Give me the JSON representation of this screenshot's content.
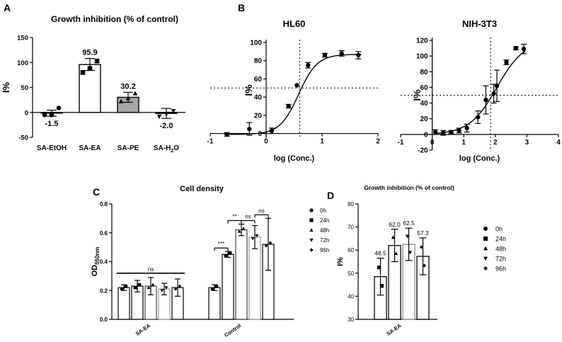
{
  "chart_data": [
    {
      "panel": "A",
      "type": "bar",
      "title": "Growth inhibition (% of control)",
      "ylabel": "I%",
      "xlabel": "",
      "ylim": [
        -50,
        150
      ],
      "yticks": [
        -50,
        0,
        50,
        100,
        150
      ],
      "categories": [
        "SA-EtOH",
        "SA-EA",
        "SA-PE",
        "SA-H2O"
      ],
      "category_labels": [
        {
          "main": "SA-EtOH",
          "sub": "",
          "tail": ""
        },
        {
          "main": "SA-EA",
          "sub": "",
          "tail": ""
        },
        {
          "main": "SA-PE",
          "sub": "",
          "tail": ""
        },
        {
          "main": "SA-H",
          "sub": "2",
          "tail": "O"
        }
      ],
      "values": [
        -1.5,
        95.9,
        30.2,
        -2.0
      ],
      "value_labels": [
        "-1.5",
        "95.9",
        "30.2",
        "-2.0"
      ],
      "errors": [
        6,
        12,
        10,
        10
      ],
      "bar_colors": [
        "#ffffff",
        "#ffffff",
        "#a6a6a6",
        "#ffffff"
      ],
      "replicates": [
        {
          "marker": "circle",
          "values": [
            -5,
            -5,
            9
          ]
        },
        {
          "marker": "square",
          "values": [
            80,
            88,
            103
          ]
        },
        {
          "marker": "triangle",
          "values": [
            22,
            28,
            38
          ]
        },
        {
          "marker": "triangle-down",
          "values": [
            -8,
            -3,
            3
          ]
        }
      ]
    },
    {
      "panel": "B",
      "type": "scatter",
      "title": "HL60",
      "xlabel": "log (Conc.)",
      "ylabel": "I%",
      "xlim": [
        -1,
        2
      ],
      "ylim": [
        -5,
        100
      ],
      "xticks": [
        -1,
        0,
        1,
        2
      ],
      "yticks": [
        0,
        20,
        40,
        60,
        80,
        100
      ],
      "fit": {
        "bottom": -1,
        "top": 87,
        "logIC50": 0.58,
        "hill": 2.6
      },
      "x": [
        -0.7,
        -0.3,
        0.1,
        0.4,
        0.55,
        0.75,
        1.05,
        1.35,
        1.65
      ],
      "y": [
        -1,
        5,
        3,
        30,
        53,
        75,
        86,
        88,
        86
      ],
      "err": [
        2,
        7,
        3,
        2,
        0,
        3,
        2,
        3,
        4
      ],
      "reference_lines": {
        "x": 0.6,
        "y": 50
      }
    },
    {
      "panel": "B",
      "type": "scatter",
      "title": "NIH-3T3",
      "xlabel": "log (Conc.)",
      "ylabel": "I%",
      "xlim": [
        -1,
        4
      ],
      "ylim": [
        -20,
        120
      ],
      "xticks": [
        -1,
        0,
        1,
        2,
        3,
        4
      ],
      "yticks": [
        -20,
        0,
        20,
        40,
        60,
        80,
        100,
        120
      ],
      "fit": {
        "bottom": 0,
        "top": 120,
        "logIC50": 2.05,
        "hill": 1.0
      },
      "x": [
        0.1,
        0.35,
        0.6,
        0.85,
        1.1,
        1.45,
        1.7,
        1.95,
        2.05,
        2.35,
        2.65,
        2.9
      ],
      "y": [
        3,
        2,
        3,
        5,
        8,
        22,
        44,
        52,
        62,
        92,
        110,
        109
      ],
      "err": [
        3,
        3,
        2,
        3,
        5,
        8,
        18,
        12,
        20,
        3,
        2,
        6
      ],
      "reference_lines": {
        "x": 1.85,
        "y": 50
      }
    },
    {
      "panel": "C",
      "type": "bar",
      "title": "Cell density",
      "ylabel": "OD",
      "ylabel_sub": "550nm",
      "ylim": [
        0.0,
        0.8
      ],
      "yticks": [
        0.0,
        0.2,
        0.4,
        0.6,
        0.8
      ],
      "ytick_labels": [
        "0.0",
        "0.2",
        "0.4",
        "0.6",
        "0.8"
      ],
      "categories": [
        "SA-EA",
        "Control"
      ],
      "legend": [
        "0h",
        "24h",
        "48h",
        "72h",
        "96h"
      ],
      "legend_markers": [
        "circle",
        "square",
        "triangle",
        "triangle-down",
        "diamond"
      ],
      "series": [
        {
          "name": "0h",
          "values": [
            0.22,
            0.22
          ],
          "errors": [
            0.02,
            0.02
          ]
        },
        {
          "name": "24h",
          "values": [
            0.23,
            0.45
          ],
          "errors": [
            0.04,
            0.02
          ]
        },
        {
          "name": "48h",
          "values": [
            0.23,
            0.62
          ],
          "errors": [
            0.06,
            0.04
          ]
        },
        {
          "name": "72h",
          "values": [
            0.21,
            0.57
          ],
          "errors": [
            0.04,
            0.08
          ]
        },
        {
          "name": "96h",
          "values": [
            0.22,
            0.52
          ],
          "errors": [
            0.06,
            0.18
          ]
        }
      ],
      "significance": [
        {
          "group": "SA-EA",
          "from": 0,
          "to": 4,
          "label": "ns"
        },
        {
          "group": "Control",
          "from": 0,
          "to": 1,
          "label": "***"
        },
        {
          "group": "Control",
          "from": 1,
          "to": 2,
          "label": "**"
        },
        {
          "group": "Control",
          "from": 2,
          "to": 3,
          "label": "ns"
        },
        {
          "group": "Control",
          "from": 3,
          "to": 4,
          "label": "ns"
        }
      ]
    },
    {
      "panel": "D",
      "type": "bar",
      "title": "Growth inhibition (% of control)",
      "ylabel": "I%",
      "ylim": [
        30,
        80
      ],
      "yticks": [
        30,
        40,
        50,
        60,
        70,
        80
      ],
      "categories": [
        "SA-EA"
      ],
      "legend": [
        "0h",
        "24h",
        "48h",
        "72h",
        "96h"
      ],
      "legend_markers": [
        "circle",
        "square",
        "triangle",
        "triangle-down",
        "diamond"
      ],
      "series": [
        {
          "name": "24h",
          "value": 48.5,
          "label": "48.5",
          "error": 8
        },
        {
          "name": "48h",
          "value": 62.0,
          "label": "62.0",
          "error": 7
        },
        {
          "name": "72h",
          "value": 62.5,
          "label": "62.5",
          "error": 7
        },
        {
          "name": "96h",
          "value": 57.3,
          "label": "57.3",
          "error": 8
        }
      ]
    }
  ],
  "panel_letters": [
    "A",
    "B",
    "C",
    "D"
  ]
}
